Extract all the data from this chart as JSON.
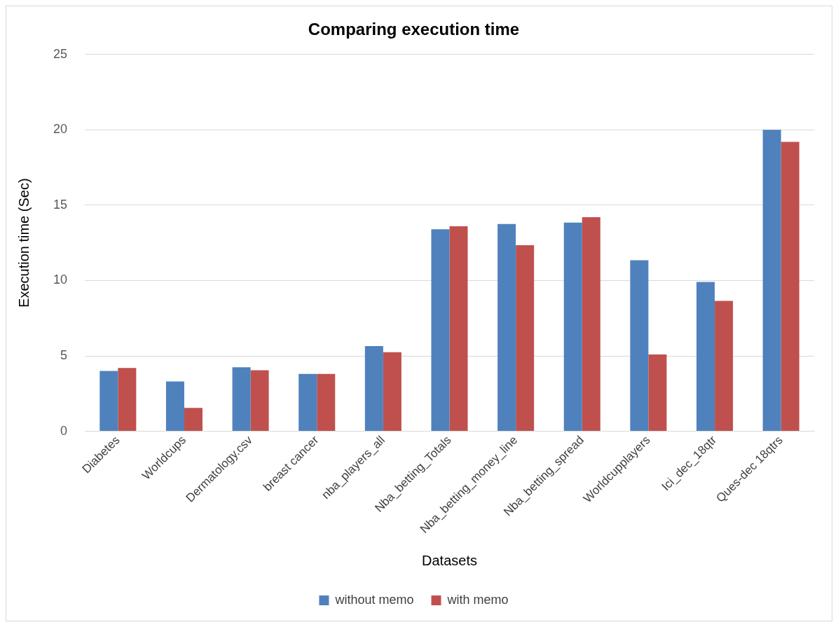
{
  "chart_data": {
    "type": "bar",
    "title": "Comparing execution time",
    "xlabel": "Datasets",
    "ylabel": "Execution time (Sec)",
    "categories": [
      "Diabetes",
      "Worldcups",
      "Dermatology.csv",
      "breast cancer",
      "nba_players_all",
      "Nba_betting_Totals",
      "Nba_betting_money_line",
      "Nba_betting_spread",
      "Worldcupplayers",
      "Ici_dec_18qtr",
      "Ques-dec 18qtrs"
    ],
    "series": [
      {
        "name": "without memo",
        "color": "#4f81bd",
        "values": [
          4.0,
          3.3,
          4.25,
          3.8,
          5.65,
          13.4,
          13.75,
          13.85,
          11.35,
          9.9,
          20.0
        ]
      },
      {
        "name": "with memo",
        "color": "#c0504d",
        "values": [
          4.2,
          1.55,
          4.05,
          3.8,
          5.25,
          13.6,
          12.35,
          14.2,
          5.1,
          8.65,
          19.2
        ]
      }
    ],
    "ylim": [
      0,
      25
    ],
    "yticks": [
      0,
      5,
      10,
      15,
      20,
      25
    ],
    "grid": "y",
    "legend": "bottom"
  }
}
